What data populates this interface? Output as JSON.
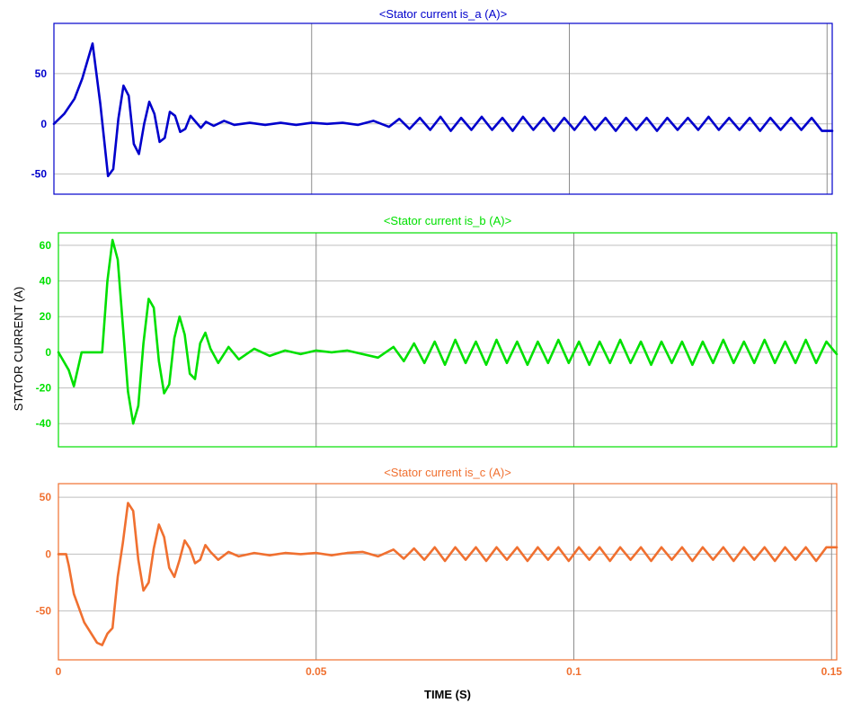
{
  "chart_data": [
    {
      "type": "line",
      "title": "<Stator current is_a (A)>",
      "color": "#0000cc",
      "xlim": [
        0,
        0.151
      ],
      "ylim": [
        -70,
        100
      ],
      "xticks": [
        0,
        0.05,
        0.1,
        0.15
      ],
      "yticks": [
        -50,
        0,
        50
      ],
      "ytick_labels": [
        "-50",
        "0",
        "50"
      ],
      "grid": true,
      "series": [
        {
          "x": [
            0,
            0.002,
            0.004,
            0.0055,
            0.0075,
            0.009,
            0.0105,
            0.0115,
            0.0125,
            0.0135,
            0.0145,
            0.0155,
            0.0165,
            0.0175,
            0.0185,
            0.0195,
            0.0205,
            0.0215,
            0.0225,
            0.0235,
            0.0245,
            0.0255,
            0.0265,
            0.0275,
            0.0285,
            0.0295,
            0.031,
            0.033,
            0.035,
            0.038,
            0.041,
            0.044,
            0.047,
            0.05,
            0.053,
            0.056,
            0.059,
            0.062,
            0.065,
            0.067,
            0.069,
            0.071,
            0.073,
            0.075,
            0.077,
            0.079,
            0.081,
            0.083,
            0.085,
            0.087,
            0.089,
            0.091,
            0.093,
            0.095,
            0.097,
            0.099,
            0.101,
            0.103,
            0.105,
            0.107,
            0.109,
            0.111,
            0.113,
            0.115,
            0.117,
            0.119,
            0.121,
            0.123,
            0.125,
            0.127,
            0.129,
            0.131,
            0.133,
            0.135,
            0.137,
            0.139,
            0.141,
            0.143,
            0.145,
            0.147,
            0.149,
            0.151
          ],
          "y": [
            0,
            10,
            25,
            45,
            80,
            20,
            -52,
            -45,
            5,
            38,
            28,
            -20,
            -30,
            0,
            22,
            10,
            -18,
            -14,
            12,
            8,
            -8,
            -5,
            8,
            2,
            -4,
            2,
            -2,
            3,
            -1,
            1,
            -1,
            1,
            -1,
            1,
            0,
            1,
            -1,
            3,
            -3,
            5,
            -5,
            6,
            -6,
            7,
            -7,
            6,
            -6,
            7,
            -6,
            6,
            -7,
            7,
            -6,
            6,
            -7,
            6,
            -6,
            7,
            -6,
            6,
            -7,
            6,
            -6,
            6,
            -7,
            6,
            -6,
            6,
            -6,
            7,
            -6,
            6,
            -6,
            6,
            -7,
            6,
            -6,
            6,
            -6,
            6,
            -7,
            -7
          ]
        }
      ]
    },
    {
      "type": "line",
      "title": "<Stator current is_b (A)>",
      "color": "#00e000",
      "xlim": [
        0,
        0.151
      ],
      "ylim": [
        -53,
        67
      ],
      "xticks": [
        0,
        0.05,
        0.1,
        0.15
      ],
      "yticks": [
        -40,
        -20,
        0,
        20,
        40,
        60
      ],
      "ytick_labels": [
        "-40",
        "-20",
        "0",
        "20",
        "40",
        "60"
      ],
      "ylabel": "STATOR CURRENT (A)",
      "grid": true,
      "series": [
        {
          "x": [
            0,
            0.002,
            0.003,
            0.0045,
            0.0085,
            0.0095,
            0.0105,
            0.0115,
            0.0125,
            0.0135,
            0.0145,
            0.0155,
            0.0165,
            0.0175,
            0.0185,
            0.0195,
            0.0205,
            0.0215,
            0.0225,
            0.0235,
            0.0245,
            0.0255,
            0.0265,
            0.0275,
            0.0285,
            0.0295,
            0.031,
            0.033,
            0.035,
            0.038,
            0.041,
            0.044,
            0.047,
            0.05,
            0.053,
            0.056,
            0.059,
            0.062,
            0.065,
            0.067,
            0.069,
            0.071,
            0.073,
            0.075,
            0.077,
            0.079,
            0.081,
            0.083,
            0.085,
            0.087,
            0.089,
            0.091,
            0.093,
            0.095,
            0.097,
            0.099,
            0.101,
            0.103,
            0.105,
            0.107,
            0.109,
            0.111,
            0.113,
            0.115,
            0.117,
            0.119,
            0.121,
            0.123,
            0.125,
            0.127,
            0.129,
            0.131,
            0.133,
            0.135,
            0.137,
            0.139,
            0.141,
            0.143,
            0.145,
            0.147,
            0.149,
            0.151
          ],
          "y": [
            0,
            -10,
            -19,
            0,
            0,
            40,
            63,
            52,
            15,
            -22,
            -40,
            -30,
            5,
            30,
            25,
            -5,
            -23,
            -18,
            8,
            20,
            10,
            -12,
            -15,
            5,
            11,
            2,
            -6,
            3,
            -4,
            2,
            -2,
            1,
            -1,
            1,
            0,
            1,
            -1,
            -3,
            3,
            -5,
            5,
            -6,
            6,
            -7,
            7,
            -6,
            6,
            -7,
            7,
            -6,
            6,
            -7,
            6,
            -6,
            7,
            -6,
            6,
            -7,
            6,
            -6,
            7,
            -6,
            6,
            -7,
            6,
            -6,
            6,
            -7,
            6,
            -6,
            7,
            -6,
            6,
            -6,
            7,
            -6,
            6,
            -6,
            7,
            -6,
            6,
            -1
          ]
        }
      ]
    },
    {
      "type": "line",
      "title": "<Stator current is_c (A)>",
      "color": "#f07030",
      "xlim": [
        0,
        0.151
      ],
      "ylim": [
        -93,
        62
      ],
      "xticks": [
        0,
        0.05,
        0.1,
        0.15
      ],
      "xtick_labels": [
        "0",
        "0.05",
        "0.1",
        "0.15"
      ],
      "yticks": [
        -50,
        0,
        50
      ],
      "ytick_labels": [
        "-50",
        "0",
        "50"
      ],
      "xlabel": "TIME (S)",
      "grid": true,
      "series": [
        {
          "x": [
            0,
            0.0015,
            0.002,
            0.003,
            0.005,
            0.0075,
            0.0085,
            0.0095,
            0.0105,
            0.0115,
            0.0125,
            0.0135,
            0.0145,
            0.0155,
            0.0165,
            0.0175,
            0.0185,
            0.0195,
            0.0205,
            0.0215,
            0.0225,
            0.0235,
            0.0245,
            0.0255,
            0.0265,
            0.0275,
            0.0285,
            0.0295,
            0.031,
            0.033,
            0.035,
            0.038,
            0.041,
            0.044,
            0.047,
            0.05,
            0.053,
            0.056,
            0.059,
            0.062,
            0.065,
            0.067,
            0.069,
            0.071,
            0.073,
            0.075,
            0.077,
            0.079,
            0.081,
            0.083,
            0.085,
            0.087,
            0.089,
            0.091,
            0.093,
            0.095,
            0.097,
            0.099,
            0.101,
            0.103,
            0.105,
            0.107,
            0.109,
            0.111,
            0.113,
            0.115,
            0.117,
            0.119,
            0.121,
            0.123,
            0.125,
            0.127,
            0.129,
            0.131,
            0.133,
            0.135,
            0.137,
            0.139,
            0.141,
            0.143,
            0.145,
            0.147,
            0.149,
            0.151
          ],
          "y": [
            0,
            0,
            -10,
            -35,
            -60,
            -78,
            -80,
            -70,
            -65,
            -20,
            10,
            45,
            38,
            -5,
            -32,
            -25,
            5,
            26,
            15,
            -12,
            -20,
            -5,
            12,
            5,
            -8,
            -5,
            8,
            2,
            -5,
            2,
            -2,
            1,
            -1,
            1,
            0,
            1,
            -1,
            1,
            2,
            -2,
            4,
            -4,
            5,
            -5,
            6,
            -6,
            6,
            -5,
            6,
            -6,
            6,
            -5,
            6,
            -6,
            6,
            -5,
            6,
            -6,
            6,
            -5,
            6,
            -6,
            6,
            -5,
            6,
            -6,
            6,
            -5,
            6,
            -6,
            6,
            -5,
            6,
            -6,
            6,
            -5,
            6,
            -6,
            6,
            -5,
            6,
            -6,
            6,
            6
          ]
        }
      ]
    }
  ]
}
